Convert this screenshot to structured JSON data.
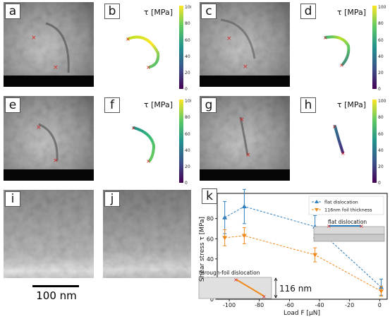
{
  "panels": {
    "a": "a",
    "b": "b",
    "c": "c",
    "d": "d",
    "e": "e",
    "f": "f",
    "g": "g",
    "h": "h",
    "i": "i",
    "j": "j",
    "k": "k"
  },
  "colorbar": {
    "label": "τ [MPa]",
    "ticks": [
      "100",
      "80",
      "60",
      "40",
      "20",
      "0"
    ],
    "range": [
      0,
      100
    ],
    "colormap": "viridis"
  },
  "scale_bar": {
    "label": "100 nm"
  },
  "chart_data": {
    "type": "line",
    "xlabel": "Load F [μN]",
    "ylabel": "Shear stress τ [MPa]",
    "xlim": [
      -108,
      5
    ],
    "ylim": [
      0,
      105
    ],
    "xticks": [
      "-100",
      "-80",
      "-60",
      "-40",
      "-20",
      "0"
    ],
    "yticks": [
      "0",
      "20",
      "40",
      "60",
      "80",
      "100"
    ],
    "legend_position": "top-right",
    "series": [
      {
        "name": "flat dislocation",
        "color": "#2f7fbf",
        "marker": "triangle-up",
        "points": [
          {
            "x": -103,
            "y": 81,
            "err": 16
          },
          {
            "x": -90,
            "y": 92,
            "err": 17
          },
          {
            "x": -43,
            "y": 72,
            "err": 11
          },
          {
            "x": 1,
            "y": 12,
            "err": 8
          }
        ]
      },
      {
        "name": "116nm foil thickness",
        "color": "#f08a1c",
        "marker": "triangle-down",
        "points": [
          {
            "x": -103,
            "y": 61,
            "err": 8
          },
          {
            "x": -90,
            "y": 63,
            "err": 8
          },
          {
            "x": -43,
            "y": 44,
            "err": 7
          },
          {
            "x": 1,
            "y": 8,
            "err": 5
          }
        ]
      }
    ],
    "insets": {
      "flat": {
        "label": "flat dislocation"
      },
      "through": {
        "label": "through-foil dislocation",
        "thickness": "116 nm"
      }
    }
  }
}
